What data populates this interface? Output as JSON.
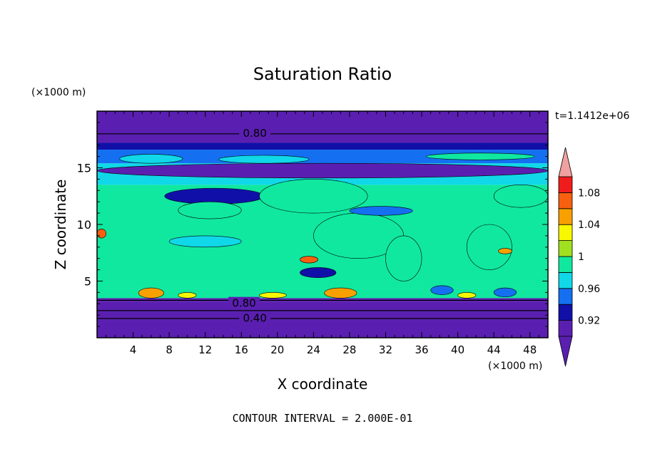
{
  "chart_data": {
    "type": "heatmap",
    "title": "Saturation Ratio",
    "xlabel": "X coordinate",
    "ylabel": "Z coordinate",
    "x_unit": "(×1000 m)",
    "y_unit": "(×1000 m)",
    "time_label": "t=1.1412e+06",
    "footer": "CONTOUR INTERVAL = 2.000E-01",
    "xlim": [
      0,
      50
    ],
    "ylim": [
      0,
      20
    ],
    "x_ticks": [
      4,
      8,
      12,
      16,
      20,
      24,
      28,
      32,
      36,
      40,
      44,
      48
    ],
    "y_ticks": [
      5,
      10,
      15
    ],
    "contour_labels": [
      {
        "text": "0.80",
        "x": 17.5,
        "y": 18.1
      },
      {
        "text": "0.80",
        "x": 16.3,
        "y": 3.1
      },
      {
        "text": "0.40",
        "x": 17.5,
        "y": 1.8
      }
    ],
    "colorbar": {
      "levels": [
        0.9,
        0.92,
        0.94,
        0.96,
        0.98,
        1.0,
        1.02,
        1.04,
        1.06,
        1.08,
        1.1
      ],
      "tick_labels": [
        "0.92",
        "0.96",
        "1",
        "1.04",
        "1.08"
      ],
      "tick_values": [
        0.92,
        0.96,
        1.0,
        1.04,
        1.08
      ],
      "colors": [
        "#5a1fb0",
        "#1010a8",
        "#1470f0",
        "#10d8e8",
        "#10e8a0",
        "#a0e020",
        "#f8f800",
        "#f8a000",
        "#f86010",
        "#f01c1c",
        "#f0a0a0"
      ],
      "extend": "both"
    },
    "layers": [
      {
        "z": [
          0,
          3.2
        ],
        "value": 0.5
      },
      {
        "z": [
          3.2,
          3.5
        ],
        "value": 0.91
      },
      {
        "z": [
          3.5,
          4.4
        ],
        "value": 0.995
      },
      {
        "z": [
          4.4,
          13.5
        ],
        "value": 0.99
      },
      {
        "z": [
          13.5,
          15.4
        ],
        "value": 0.965
      },
      {
        "z": [
          15.4,
          16.6
        ],
        "value": 0.95
      },
      {
        "z": [
          16.6,
          17.2
        ],
        "value": 0.93
      },
      {
        "z": [
          17.2,
          20
        ],
        "value": 0.85
      }
    ],
    "features": [
      {
        "x": [
          0,
          50
        ],
        "z": [
          14.1,
          15.4
        ],
        "value": 0.915
      },
      {
        "x": [
          2.5,
          9.5
        ],
        "z": [
          15.4,
          16.2
        ],
        "value": 0.975
      },
      {
        "x": [
          13.5,
          23.5
        ],
        "z": [
          15.4,
          16.1
        ],
        "value": 0.975
      },
      {
        "x": [
          36.5,
          48.5
        ],
        "z": [
          15.7,
          16.3
        ],
        "value": 0.995
      },
      {
        "x": [
          7.5,
          18.5
        ],
        "z": [
          11.8,
          13.2
        ],
        "value": 0.925
      },
      {
        "x": [
          20.5,
          27.5
        ],
        "z": [
          12.8,
          13.5
        ],
        "value": 0.95
      },
      {
        "x": [
          9.0,
          16.0
        ],
        "z": [
          10.5,
          12.0
        ],
        "value": 0.995
      },
      {
        "x": [
          18.0,
          30.0
        ],
        "z": [
          11.0,
          14.0
        ],
        "value": 0.995
      },
      {
        "x": [
          44.0,
          50.0
        ],
        "z": [
          11.5,
          13.5
        ],
        "value": 0.995
      },
      {
        "x": [
          24.0,
          34.0
        ],
        "z": [
          7.0,
          11.0
        ],
        "value": 0.995
      },
      {
        "x": [
          32.0,
          36.0
        ],
        "z": [
          5.0,
          9.0
        ],
        "value": 0.995
      },
      {
        "x": [
          41.0,
          46.0
        ],
        "z": [
          6.0,
          10.0
        ],
        "value": 0.995
      },
      {
        "x": [
          8.0,
          16.0
        ],
        "z": [
          8.0,
          9.0
        ],
        "value": 0.965
      },
      {
        "x": [
          28.0,
          35.0
        ],
        "z": [
          10.8,
          11.6
        ],
        "value": 0.95
      },
      {
        "x": [
          22.5,
          26.5
        ],
        "z": [
          5.3,
          6.2
        ],
        "value": 0.93
      },
      {
        "x": [
          22.5,
          24.5
        ],
        "z": [
          6.6,
          7.2
        ],
        "value": 1.06
      },
      {
        "x": [
          44.5,
          46.0
        ],
        "z": [
          7.4,
          7.9
        ],
        "value": 1.05
      },
      {
        "x": [
          0,
          1.0
        ],
        "z": [
          8.8,
          9.6
        ],
        "value": 1.06
      },
      {
        "x": [
          4.6,
          7.4
        ],
        "z": [
          3.5,
          4.4
        ],
        "value": 1.05
      },
      {
        "x": [
          25.2,
          28.8
        ],
        "z": [
          3.5,
          4.4
        ],
        "value": 1.05
      },
      {
        "x": [
          9.0,
          11.0
        ],
        "z": [
          3.5,
          4.0
        ],
        "value": 1.03
      },
      {
        "x": [
          18.0,
          21.0
        ],
        "z": [
          3.5,
          4.0
        ],
        "value": 1.03
      },
      {
        "x": [
          40.0,
          42.0
        ],
        "z": [
          3.5,
          4.0
        ],
        "value": 1.03
      },
      {
        "x": [
          37.0,
          39.5
        ],
        "z": [
          3.8,
          4.6
        ],
        "value": 0.95
      },
      {
        "x": [
          44.0,
          46.5
        ],
        "z": [
          3.6,
          4.4
        ],
        "value": 0.95
      }
    ]
  }
}
